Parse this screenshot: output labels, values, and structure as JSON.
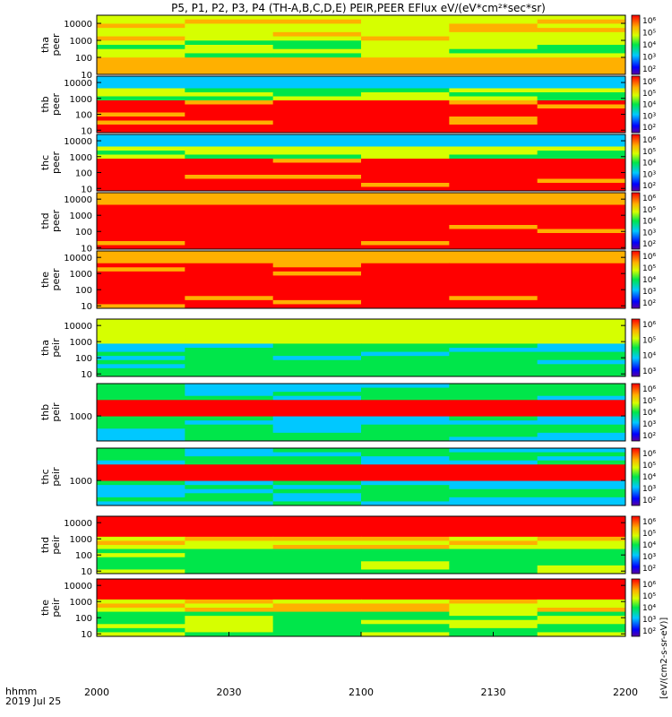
{
  "title": "P5, P1, P2, P3, P4 (TH-A,B,C,D,E) PEIR,PEER EFlux eV/(eV*cm²*sec*sr)",
  "time_axis": {
    "label_line1": "hhmm",
    "label_line2": "2019 Jul 25",
    "ticks": [
      "2000",
      "2030",
      "2100",
      "2130",
      "2200"
    ]
  },
  "colorbar_label_right": "[eV/(cm2-s-sr-eV)]",
  "colors": {
    "background": "#ffffff",
    "saturated": "#e8000b",
    "fill_gap": "#000000"
  },
  "chart_data": [
    {
      "type": "heatmap",
      "probe": "tha",
      "species": "peer",
      "ylabel_line1": "tha",
      "ylabel_line2": "peer",
      "yscale": "log",
      "ylim": [
        10,
        30000
      ],
      "yticks": [
        "10",
        "100",
        "1000",
        "10000"
      ],
      "colorbar_ticks": [
        "10⁶",
        "10⁵",
        "10⁴",
        "10³",
        "10²"
      ],
      "x": [
        "2000",
        "2200"
      ]
    },
    {
      "type": "heatmap",
      "probe": "thb",
      "species": "peer",
      "ylabel_line1": "thb",
      "ylabel_line2": "peer",
      "yscale": "log",
      "ylim": [
        7,
        25000
      ],
      "yticks": [
        "10",
        "100",
        "1000",
        "10000"
      ],
      "colorbar_ticks": [
        "10⁶",
        "10⁵",
        "10⁴",
        "10³",
        "10²"
      ],
      "x": [
        "2000",
        "2200"
      ]
    },
    {
      "type": "heatmap",
      "probe": "thc",
      "species": "peer",
      "ylabel_line1": "thc",
      "ylabel_line2": "peer",
      "yscale": "log",
      "ylim": [
        7,
        25000
      ],
      "yticks": [
        "10",
        "100",
        "1000",
        "10000"
      ],
      "colorbar_ticks": [
        "10⁶",
        "10⁵",
        "10⁴",
        "10³",
        "10²"
      ],
      "x": [
        "2000",
        "2200"
      ]
    },
    {
      "type": "heatmap",
      "probe": "thd",
      "species": "peer",
      "ylabel_line1": "thd",
      "ylabel_line2": "peer",
      "yscale": "log",
      "ylim": [
        8,
        25000
      ],
      "yticks": [
        "10",
        "100",
        "1000",
        "10000"
      ],
      "colorbar_ticks": [
        "10⁶",
        "10⁵",
        "10⁴",
        "10³",
        "10²"
      ],
      "x": [
        "2000",
        "2200"
      ]
    },
    {
      "type": "heatmap",
      "probe": "the",
      "species": "peer",
      "ylabel_line1": "the",
      "ylabel_line2": "peer",
      "yscale": "log",
      "ylim": [
        7,
        25000
      ],
      "yticks": [
        "10",
        "100",
        "1000",
        "10000"
      ],
      "colorbar_ticks": [
        "10⁶",
        "10⁵",
        "10⁴",
        "10³",
        "10²"
      ],
      "x": [
        "2000",
        "2200"
      ]
    },
    {
      "type": "heatmap",
      "probe": "tha",
      "species": "peir",
      "ylabel_line1": "tha",
      "ylabel_line2": "peir",
      "yscale": "log",
      "ylim": [
        7,
        25000
      ],
      "yticks": [
        "10",
        "100",
        "1000",
        "10000"
      ],
      "colorbar_ticks": [
        "10⁶",
        "10⁵",
        "10⁴",
        "10³"
      ],
      "x": [
        "2000",
        "2200"
      ]
    },
    {
      "type": "heatmap",
      "probe": "thb",
      "species": "peir",
      "ylabel_line1": "thb",
      "ylabel_line2": "peir",
      "yscale": "log",
      "ylim": [
        200,
        8000
      ],
      "yticks": [
        "1000"
      ],
      "colorbar_ticks": [
        "10⁶",
        "10⁵",
        "10⁴",
        "10³",
        "10²"
      ],
      "x": [
        "2000",
        "2200"
      ]
    },
    {
      "type": "heatmap",
      "probe": "thc",
      "species": "peir",
      "ylabel_line1": "thc",
      "ylabel_line2": "peir",
      "yscale": "log",
      "ylim": [
        200,
        8000
      ],
      "yticks": [
        "1000"
      ],
      "colorbar_ticks": [
        "10⁶",
        "10⁵",
        "10⁴",
        "10³",
        "10²"
      ],
      "x": [
        "2000",
        "2200"
      ]
    },
    {
      "type": "heatmap",
      "probe": "thd",
      "species": "peir",
      "ylabel_line1": "thd",
      "ylabel_line2": "peir",
      "yscale": "log",
      "ylim": [
        7,
        25000
      ],
      "yticks": [
        "10",
        "100",
        "1000",
        "10000"
      ],
      "colorbar_ticks": [
        "10⁶",
        "10⁵",
        "10⁴",
        "10³",
        "10²"
      ],
      "x": [
        "2000",
        "2200"
      ]
    },
    {
      "type": "heatmap",
      "probe": "the",
      "species": "peir",
      "ylabel_line1": "the",
      "ylabel_line2": "peir",
      "yscale": "log",
      "ylim": [
        7,
        25000
      ],
      "yticks": [
        "10",
        "100",
        "1000",
        "10000"
      ],
      "colorbar_ticks": [
        "10⁶",
        "10⁵",
        "10⁴",
        "10³",
        "10²"
      ],
      "x": [
        "2000",
        "2200"
      ]
    }
  ]
}
